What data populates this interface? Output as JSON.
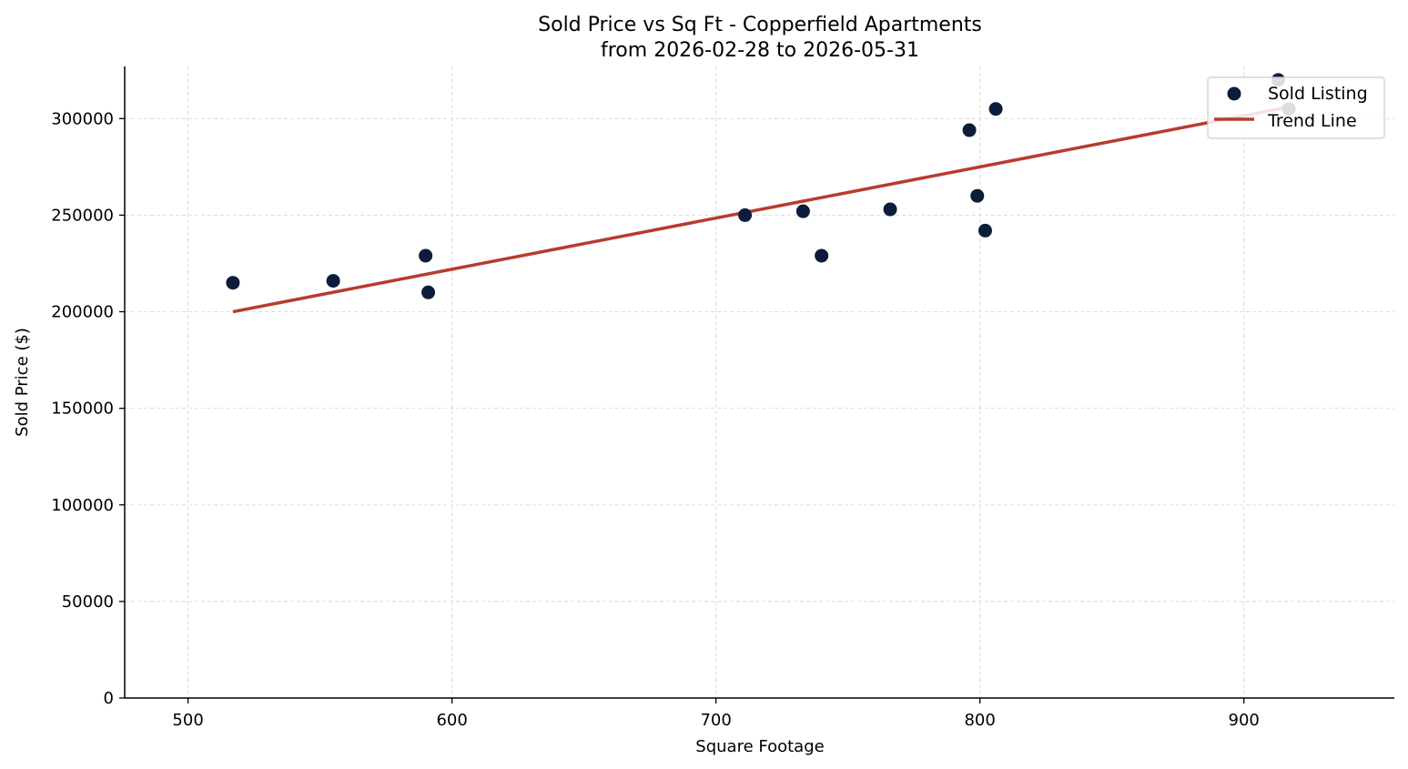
{
  "chart_data": {
    "type": "scatter",
    "title": "Sold Price vs Sq Ft - Copperfield Apartments",
    "subtitle": "from 2026-02-28 to 2026-05-31",
    "xlabel": "Square Footage",
    "ylabel": "Sold Price ($)",
    "xlim": [
      476,
      957
    ],
    "ylim": [
      0,
      327000
    ],
    "xticks": [
      500,
      600,
      700,
      800,
      900
    ],
    "yticks": [
      0,
      50000,
      100000,
      150000,
      200000,
      250000,
      300000
    ],
    "grid": true,
    "legend_position": "top-right",
    "series": [
      {
        "name": "Sold Listing",
        "kind": "scatter",
        "color": "#0b1d3a",
        "points": [
          {
            "x": 517,
            "y": 215000
          },
          {
            "x": 555,
            "y": 216000
          },
          {
            "x": 590,
            "y": 229000
          },
          {
            "x": 591,
            "y": 210000
          },
          {
            "x": 711,
            "y": 250000
          },
          {
            "x": 733,
            "y": 252000
          },
          {
            "x": 740,
            "y": 229000
          },
          {
            "x": 766,
            "y": 253000
          },
          {
            "x": 796,
            "y": 294000
          },
          {
            "x": 799,
            "y": 260000
          },
          {
            "x": 802,
            "y": 242000
          },
          {
            "x": 806,
            "y": 305000
          },
          {
            "x": 913,
            "y": 320000
          },
          {
            "x": 917,
            "y": 305000
          }
        ]
      },
      {
        "name": "Trend Line",
        "kind": "line",
        "color": "#b83b2e",
        "points": [
          {
            "x": 517,
            "y": 200000
          },
          {
            "x": 917,
            "y": 306000
          }
        ]
      }
    ]
  }
}
